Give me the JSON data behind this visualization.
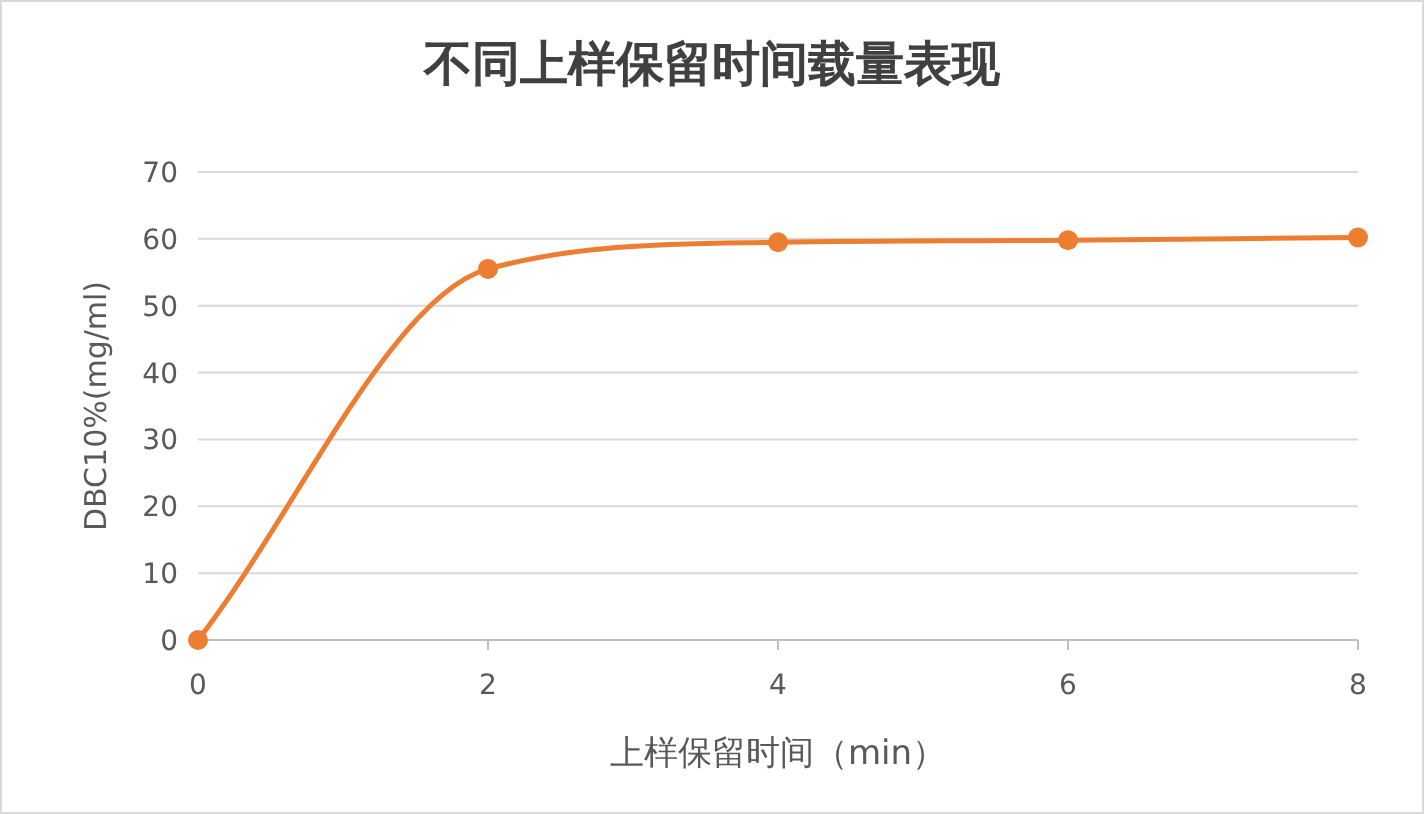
{
  "chart_data": {
    "type": "line",
    "title": "不同上样保留时间载量表现",
    "xlabel": "上样保留时间（min）",
    "ylabel": "DBC10%(mg/ml)",
    "x": [
      0,
      2,
      4,
      6,
      8
    ],
    "series": [
      {
        "color": "#ed7d31",
        "values": [
          0,
          55.5,
          59.5,
          59.8,
          60.2
        ]
      }
    ],
    "xlim": [
      0,
      8
    ],
    "xticks": [
      0,
      2,
      4,
      6,
      8
    ],
    "ylim": [
      0,
      70
    ],
    "yticks": [
      0,
      10,
      20,
      30,
      40,
      50,
      60,
      70
    ],
    "grid": "y",
    "marker": "circle",
    "line_style": "solid"
  }
}
